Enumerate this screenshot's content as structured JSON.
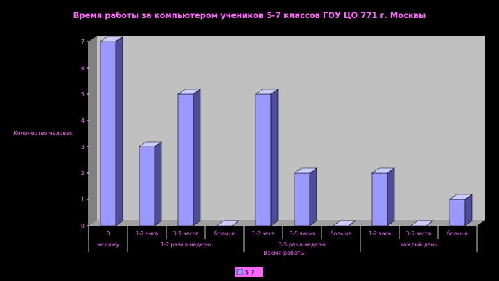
{
  "chart_data": {
    "type": "bar",
    "title": "Время работы за компьютером учеников 5-7 классов ГОУ ЦО 771 г. Москвы",
    "ylabel": "Количество человек",
    "xlabel": "Время работы",
    "ylim": [
      0,
      7
    ],
    "yticks": [
      "0",
      "1",
      "2",
      "3",
      "4",
      "5",
      "6",
      "7"
    ],
    "categories": [
      "0",
      "1-2 часа",
      "3-5 часов",
      "больше",
      "1-2 часа",
      "3-5 часов",
      "больше",
      "1-2 часа",
      "3-5 часов",
      "больше"
    ],
    "groups": [
      "не сижу",
      "1-2 раза в неделю",
      "3-5 раз в неделю",
      "каждый день"
    ],
    "series": [
      {
        "name": "5-7",
        "values": [
          7,
          3,
          5,
          0,
          5,
          2,
          0,
          2,
          0,
          1
        ],
        "color": "#9999ff"
      }
    ],
    "grid": false,
    "legend": "bottom"
  },
  "colors": {
    "background": "#000000",
    "plot_back": "#c0c0c0",
    "plot_side": "#808080",
    "floor": "#a0a0a0",
    "bar_front": "#9999ff",
    "bar_top": "#ccccff",
    "bar_side": "#4d4d99",
    "text": "#ff66ff",
    "axis": "#ffffff"
  }
}
